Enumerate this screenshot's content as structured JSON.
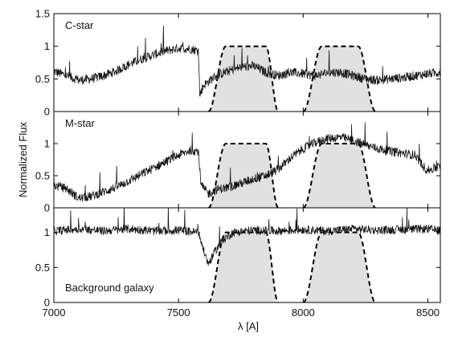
{
  "chart_data": {
    "type": "line",
    "xlabel": "λ [A]",
    "ylabel": "Normalized Flux",
    "xlim": [
      7000,
      8550
    ],
    "x_ticks": [
      7000,
      7500,
      8000,
      8500
    ],
    "shared_x_axis": true,
    "grid": false,
    "filters": [
      {
        "name": "",
        "x_start": 7620,
        "x_top_start": 7690,
        "x_top_end": 7850,
        "x_end": 7900,
        "peak": 1.0
      },
      {
        "name": "",
        "x_start": 8000,
        "x_top_start": 8075,
        "x_top_end": 8220,
        "x_end": 8290,
        "peak": 1.0
      }
    ],
    "panels": [
      {
        "label": "C-star",
        "ylim": [
          0,
          1.5
        ],
        "y_ticks": [
          0,
          0.5,
          1,
          1.5
        ],
        "series": [
          {
            "x": [
              7000,
              7050,
              7100,
              7150,
              7200,
              7250,
              7300,
              7350,
              7400,
              7450,
              7500,
              7550,
              7580,
              7585,
              7600,
              7650,
              7700,
              7750,
              7800,
              7850,
              7900,
              7950,
              8000,
              8050,
              8100,
              8150,
              8200,
              8250,
              8300,
              8350,
              8400,
              8450,
              8500,
              8550
            ],
            "y": [
              0.62,
              0.55,
              0.48,
              0.5,
              0.55,
              0.62,
              0.72,
              0.8,
              0.87,
              0.93,
              0.97,
              0.96,
              0.93,
              0.25,
              0.4,
              0.55,
              0.62,
              0.68,
              0.7,
              0.6,
              0.55,
              0.6,
              0.58,
              0.55,
              0.6,
              0.6,
              0.55,
              0.5,
              0.48,
              0.5,
              0.52,
              0.55,
              0.58,
              0.6
            ],
            "noise": 0.07
          }
        ]
      },
      {
        "label": "M-star",
        "ylim": [
          0,
          1.5
        ],
        "y_ticks": [
          0,
          0.5,
          1
        ],
        "series": [
          {
            "x": [
              7000,
              7050,
              7100,
              7150,
              7200,
              7250,
              7300,
              7350,
              7400,
              7450,
              7500,
              7550,
              7580,
              7590,
              7620,
              7650,
              7700,
              7750,
              7800,
              7850,
              7900,
              7950,
              8000,
              8050,
              8100,
              8150,
              8200,
              8250,
              8300,
              8350,
              8400,
              8450,
              8480,
              8500,
              8550
            ],
            "y": [
              0.35,
              0.3,
              0.15,
              0.18,
              0.25,
              0.32,
              0.42,
              0.52,
              0.62,
              0.72,
              0.82,
              0.9,
              0.88,
              0.35,
              0.22,
              0.28,
              0.32,
              0.38,
              0.45,
              0.5,
              0.6,
              0.78,
              0.92,
              1.02,
              1.08,
              1.1,
              1.05,
              0.98,
              0.92,
              0.88,
              0.85,
              0.82,
              0.65,
              0.58,
              0.65
            ],
            "noise": 0.07
          }
        ]
      },
      {
        "label": "Background galaxy",
        "ylim": [
          0,
          1.35
        ],
        "y_ticks": [
          0,
          0.5,
          1
        ],
        "series": [
          {
            "x": [
              7000,
              7100,
              7200,
              7300,
              7400,
              7500,
              7580,
              7600,
              7620,
              7650,
              7680,
              7720,
              7800,
              7900,
              8000,
              8100,
              8200,
              8300,
              8400,
              8500,
              8550
            ],
            "y": [
              1.02,
              1.05,
              1.02,
              1.05,
              1.02,
              1.03,
              1.0,
              0.75,
              0.55,
              0.75,
              0.9,
              1.0,
              1.03,
              1.02,
              1.04,
              1.02,
              1.05,
              1.03,
              1.04,
              1.05,
              1.02
            ],
            "noise": 0.06
          }
        ]
      }
    ]
  }
}
